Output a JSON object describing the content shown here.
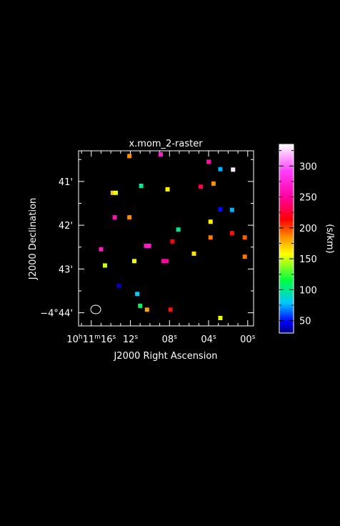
{
  "chart_data": {
    "type": "scatter",
    "title": "x.mom_2-raster",
    "xlabel": "J2000 Right Ascension",
    "ylabel": "J2000 Declination",
    "x_units": "seconds of RA offset (10h11m00s + x)",
    "y_units": "arcmin offset (-4° 40' - y)",
    "xlim": [
      17.3,
      -0.6
    ],
    "ylim": [
      0.3,
      4.3
    ],
    "x_ticks": [
      {
        "value": 16,
        "label_h": "10",
        "label_m": "11",
        "label_s": "16"
      },
      {
        "value": 12,
        "label_s": "12"
      },
      {
        "value": 8,
        "label_s": "08"
      },
      {
        "value": 4,
        "label_s": "04"
      },
      {
        "value": 0,
        "label_s": "00"
      }
    ],
    "y_ticks": [
      {
        "value": 1,
        "label": "41'"
      },
      {
        "value": 2,
        "label": "42'"
      },
      {
        "value": 3,
        "label": "43'"
      },
      {
        "value": 4,
        "label": "−4°44'"
      }
    ],
    "colorbar": {
      "label": "(s/km)",
      "range": [
        30,
        335
      ],
      "ticks": [
        50,
        100,
        150,
        200,
        250,
        300
      ]
    },
    "beam": "ellipse, lower-left",
    "points": [
      {
        "x": 12.1,
        "y": 0.42,
        "v": 185
      },
      {
        "x": 8.9,
        "y": 0.38,
        "v": 270
      },
      {
        "x": 4.0,
        "y": 0.55,
        "v": 255
      },
      {
        "x": 2.8,
        "y": 0.72,
        "v": 75
      },
      {
        "x": 1.5,
        "y": 0.73,
        "v": 330
      },
      {
        "x": 3.5,
        "y": 1.05,
        "v": 185
      },
      {
        "x": 10.9,
        "y": 1.1,
        "v": 100
      },
      {
        "x": 4.8,
        "y": 1.12,
        "v": 230
      },
      {
        "x": 8.2,
        "y": 1.18,
        "v": 160
      },
      {
        "x": 13.8,
        "y": 1.26,
        "v": 170
      },
      {
        "x": 13.5,
        "y": 1.26,
        "v": 155
      },
      {
        "x": 2.8,
        "y": 1.64,
        "v": 50
      },
      {
        "x": 1.6,
        "y": 1.65,
        "v": 75
      },
      {
        "x": 13.6,
        "y": 1.82,
        "v": 260
      },
      {
        "x": 12.1,
        "y": 1.82,
        "v": 185
      },
      {
        "x": 3.8,
        "y": 1.92,
        "v": 160
      },
      {
        "x": 7.1,
        "y": 2.1,
        "v": 100
      },
      {
        "x": 1.6,
        "y": 2.18,
        "v": 210
      },
      {
        "x": 3.8,
        "y": 2.28,
        "v": 190
      },
      {
        "x": 0.3,
        "y": 2.28,
        "v": 195
      },
      {
        "x": 7.7,
        "y": 2.37,
        "v": 215
      },
      {
        "x": 10.4,
        "y": 2.47,
        "v": 265
      },
      {
        "x": 10.1,
        "y": 2.47,
        "v": 270
      },
      {
        "x": 15.0,
        "y": 2.55,
        "v": 265
      },
      {
        "x": 5.5,
        "y": 2.65,
        "v": 165
      },
      {
        "x": 0.3,
        "y": 2.72,
        "v": 190
      },
      {
        "x": 8.6,
        "y": 2.82,
        "v": 255
      },
      {
        "x": 8.3,
        "y": 2.82,
        "v": 250
      },
      {
        "x": 11.6,
        "y": 2.82,
        "v": 155
      },
      {
        "x": 14.6,
        "y": 2.92,
        "v": 150
      },
      {
        "x": 13.2,
        "y": 3.38,
        "v": 40
      },
      {
        "x": 11.3,
        "y": 3.57,
        "v": 80
      },
      {
        "x": 11.0,
        "y": 3.84,
        "v": 110
      },
      {
        "x": 10.3,
        "y": 3.93,
        "v": 180
      },
      {
        "x": 7.9,
        "y": 3.93,
        "v": 210
      },
      {
        "x": 2.8,
        "y": 4.12,
        "v": 155
      }
    ]
  }
}
